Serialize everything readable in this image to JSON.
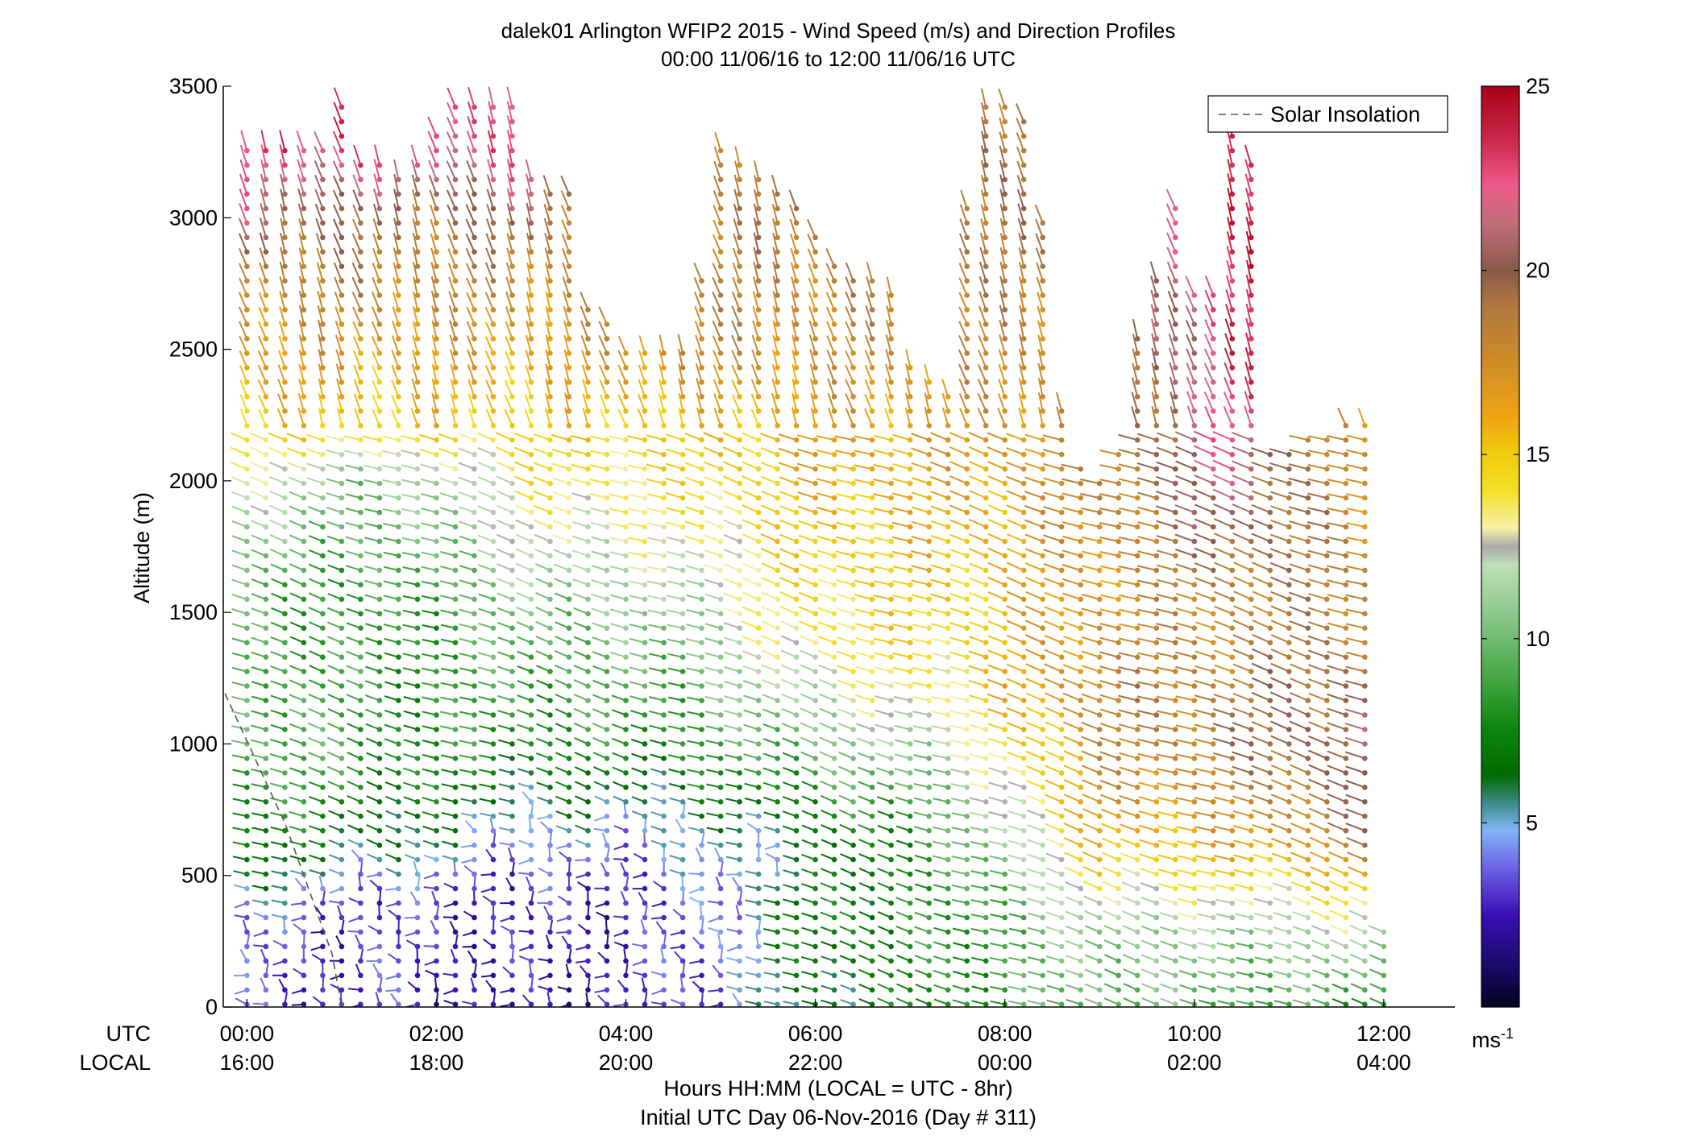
{
  "chart_data": {
    "type": "wind-barb profile",
    "title": "dalek01 Arlington WFIP2 2015 - Wind Speed (m/s) and Direction Profiles",
    "subtitle": "00:00 11/06/16 to 12:00 11/06/16  UTC",
    "ylabel": "Altitude (m)",
    "xlabel": "Hours HH:MM  (LOCAL = UTC - 8hr)",
    "xlabel2": "Initial UTC Day 06-Nov-2016 (Day # 311)",
    "xlim_hours_utc": [
      -0.25,
      12.75
    ],
    "ylim": [
      0,
      3500
    ],
    "y_ticks": [
      "0",
      "500",
      "1000",
      "1500",
      "2000",
      "2500",
      "3000",
      "3500"
    ],
    "y_tick_values": [
      0,
      500,
      1000,
      1500,
      2000,
      2500,
      3000,
      3500
    ],
    "x_tick_hours": [
      0,
      2,
      4,
      6,
      8,
      10,
      12
    ],
    "x_row_utc_label": "UTC",
    "x_row_local_label": "LOCAL",
    "x_ticks_utc": [
      "00:00",
      "02:00",
      "04:00",
      "06:00",
      "08:00",
      "10:00",
      "12:00"
    ],
    "x_ticks_local": [
      "16:00",
      "18:00",
      "20:00",
      "22:00",
      "00:00",
      "02:00",
      "04:00"
    ],
    "legend": {
      "entries": [
        {
          "label": "Solar Insolation",
          "style": "dashed",
          "color": "#888888"
        }
      ],
      "placement": "top-right"
    },
    "solar_insolation_line": {
      "x_hours": [
        -0.5,
        0.4,
        0.9,
        1.0
      ],
      "y_m": [
        1400,
        700,
        200,
        0
      ]
    },
    "colorbar": {
      "label": "ms",
      "label_exponent": "-1",
      "range": [
        0,
        25
      ],
      "ticks": [
        "5",
        "10",
        "15",
        "20",
        "25"
      ],
      "tick_values": [
        5,
        10,
        15,
        20,
        25
      ],
      "colormap": [
        {
          "v": 0,
          "c": "#040420"
        },
        {
          "v": 1.2,
          "c": "#1c0a6e"
        },
        {
          "v": 2.5,
          "c": "#3a0fb5"
        },
        {
          "v": 3.8,
          "c": "#6f63e6"
        },
        {
          "v": 4.8,
          "c": "#82b4f6"
        },
        {
          "v": 5.5,
          "c": "#3f8d8d"
        },
        {
          "v": 6.3,
          "c": "#006a00"
        },
        {
          "v": 7.5,
          "c": "#0c840c"
        },
        {
          "v": 9,
          "c": "#47a847"
        },
        {
          "v": 10.5,
          "c": "#86c486"
        },
        {
          "v": 12,
          "c": "#bfe0b6"
        },
        {
          "v": 12.5,
          "c": "#aaaaaa"
        },
        {
          "v": 13,
          "c": "#f6f0a8"
        },
        {
          "v": 14,
          "c": "#f6df2a"
        },
        {
          "v": 15,
          "c": "#f0cc0c"
        },
        {
          "v": 16,
          "c": "#f0a412"
        },
        {
          "v": 17.5,
          "c": "#cf8c28"
        },
        {
          "v": 19,
          "c": "#b0783e"
        },
        {
          "v": 20,
          "c": "#8a5a4a"
        },
        {
          "v": 21.3,
          "c": "#c06e7a"
        },
        {
          "v": 22.3,
          "c": "#ee5a8c"
        },
        {
          "v": 23.5,
          "c": "#cc2a4e"
        },
        {
          "v": 25,
          "c": "#a80016"
        }
      ]
    },
    "profile_times_hours_utc": [
      0,
      0.2,
      0.4,
      0.6,
      0.8,
      1.0,
      1.2,
      1.4,
      1.6,
      1.8,
      2.0,
      2.2,
      2.4,
      2.6,
      2.8,
      3.0,
      3.2,
      3.4,
      3.6,
      3.8,
      4.0,
      4.2,
      4.4,
      4.6,
      4.8,
      5.0,
      5.2,
      5.4,
      5.6,
      5.8,
      6.0,
      6.2,
      6.4,
      6.6,
      6.8,
      7.0,
      7.2,
      7.4,
      7.6,
      7.8,
      8.0,
      8.2,
      8.4,
      8.6,
      8.8,
      9.0,
      9.2,
      9.4,
      9.6,
      9.8,
      10.0,
      10.2,
      10.4,
      10.6,
      10.8,
      11.0,
      11.2,
      11.4,
      11.6,
      11.8,
      12.0
    ],
    "profile_top_m": [
      3300,
      3300,
      3280,
      3280,
      3280,
      3450,
      3200,
      3200,
      3180,
      3200,
      3320,
      3450,
      3450,
      3450,
      3450,
      3150,
      3100,
      3100,
      2700,
      2600,
      2500,
      2500,
      2500,
      2500,
      2800,
      3300,
      3200,
      3150,
      3100,
      3050,
      2950,
      2850,
      2800,
      2800,
      2750,
      2450,
      2400,
      2350,
      3050,
      3450,
      3450,
      3400,
      3000,
      2300,
      2050,
      2000,
      2100,
      2550,
      2800,
      3050,
      2750,
      2750,
      3400,
      3250,
      2150,
      2100,
      2200,
      2200,
      2250,
      2250,
      300
    ],
    "level_spacing_m": 55,
    "speed_profile_stops": [
      {
        "t": 0,
        "levels": [
          [
            0,
            3
          ],
          [
            300,
            3.5
          ],
          [
            500,
            6
          ],
          [
            700,
            8
          ],
          [
            1000,
            10
          ],
          [
            1600,
            9
          ],
          [
            2000,
            12.5
          ],
          [
            2300,
            16
          ],
          [
            2700,
            18
          ],
          [
            3000,
            21
          ],
          [
            3300,
            23
          ]
        ]
      },
      {
        "t": 1.5,
        "levels": [
          [
            0,
            3
          ],
          [
            400,
            3
          ],
          [
            600,
            6
          ],
          [
            900,
            8
          ],
          [
            1500,
            8
          ],
          [
            2000,
            10
          ],
          [
            2200,
            15
          ],
          [
            2700,
            18
          ],
          [
            3000,
            19
          ],
          [
            3300,
            24
          ]
        ]
      },
      {
        "t": 3,
        "levels": [
          [
            0,
            2
          ],
          [
            500,
            3
          ],
          [
            700,
            5
          ],
          [
            1000,
            8
          ],
          [
            1500,
            10
          ],
          [
            1800,
            12.5
          ],
          [
            2200,
            15
          ],
          [
            2800,
            18
          ],
          [
            3200,
            22
          ]
        ]
      },
      {
        "t": 4.5,
        "levels": [
          [
            0,
            3
          ],
          [
            400,
            3
          ],
          [
            700,
            5
          ],
          [
            1000,
            8
          ],
          [
            1400,
            10
          ],
          [
            1800,
            13
          ],
          [
            2200,
            15
          ],
          [
            2500,
            18
          ]
        ]
      },
      {
        "t": 6,
        "levels": [
          [
            0,
            6
          ],
          [
            300,
            7.5
          ],
          [
            600,
            6
          ],
          [
            1000,
            10
          ],
          [
            1400,
            14
          ],
          [
            1800,
            15
          ],
          [
            2400,
            17
          ],
          [
            3000,
            19
          ]
        ]
      },
      {
        "t": 7.5,
        "levels": [
          [
            0,
            8
          ],
          [
            400,
            8
          ],
          [
            800,
            10
          ],
          [
            1200,
            14
          ],
          [
            1600,
            15
          ],
          [
            2000,
            16
          ],
          [
            2600,
            18
          ],
          [
            3200,
            20
          ]
        ]
      },
      {
        "t": 9,
        "levels": [
          [
            0,
            10
          ],
          [
            300,
            11
          ],
          [
            500,
            14
          ],
          [
            800,
            17
          ],
          [
            1200,
            18
          ],
          [
            1600,
            17
          ],
          [
            2000,
            18
          ]
        ]
      },
      {
        "t": 10.5,
        "levels": [
          [
            0,
            9
          ],
          [
            300,
            11
          ],
          [
            600,
            16
          ],
          [
            1000,
            19
          ],
          [
            1500,
            18
          ],
          [
            1900,
            21
          ],
          [
            2300,
            23
          ],
          [
            2700,
            24
          ],
          [
            3200,
            25
          ]
        ]
      },
      {
        "t": 12,
        "levels": [
          [
            0,
            8
          ],
          [
            200,
            11
          ],
          [
            400,
            14
          ],
          [
            700,
            20
          ],
          [
            1000,
            21
          ],
          [
            1400,
            19
          ],
          [
            1800,
            17
          ],
          [
            2200,
            15
          ]
        ]
      }
    ]
  }
}
